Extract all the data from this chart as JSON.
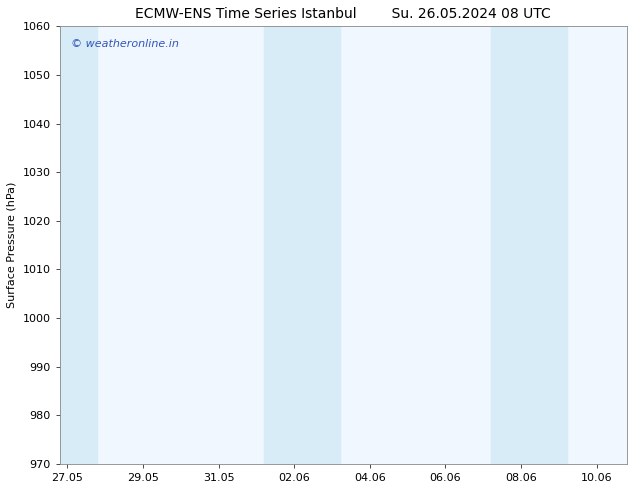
{
  "title_left": "ECMW-ENS Time Series Istanbul",
  "title_right": "Su. 26.05.2024 08 UTC",
  "ylabel": "Surface Pressure (hPa)",
  "ylim": [
    970,
    1060
  ],
  "yticks": [
    970,
    980,
    990,
    1000,
    1010,
    1020,
    1030,
    1040,
    1050,
    1060
  ],
  "x_tick_labels": [
    "27.05",
    "29.05",
    "31.05",
    "02.06",
    "04.06",
    "06.06",
    "08.06",
    "10.06"
  ],
  "x_tick_positions": [
    0,
    2,
    4,
    6,
    8,
    10,
    12,
    14
  ],
  "x_min": -0.2,
  "x_max": 14.8,
  "bg_color": "#ffffff",
  "plot_bg_color": "#f0f7ff",
  "shaded_bands": [
    {
      "x_start": -0.2,
      "x_end": 0.8
    },
    {
      "x_start": 5.2,
      "x_end": 7.2
    },
    {
      "x_start": 11.2,
      "x_end": 13.2
    }
  ],
  "shaded_color": "#d8ecf8",
  "watermark_text": "© weatheronline.in",
  "watermark_color": "#3355bb",
  "watermark_fontsize": 8,
  "title_fontsize": 10,
  "tick_fontsize": 8,
  "ylabel_fontsize": 8,
  "spine_color": "#888888"
}
